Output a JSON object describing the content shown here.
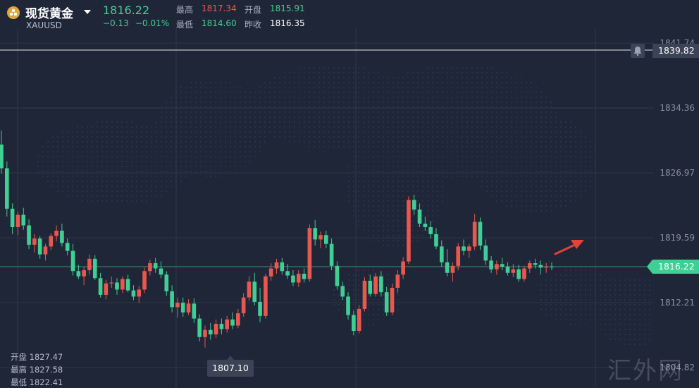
{
  "instrument": {
    "name": "现货黄金",
    "symbol": "XAUUSD",
    "last": "1816.22",
    "change": "−0.13",
    "change_pct": "−0.01%"
  },
  "quote": {
    "high_label": "最高",
    "high": "1817.34",
    "open_label": "开盘",
    "open": "1815.91",
    "low_label": "最低",
    "low": "1814.60",
    "prev_label": "昨收",
    "prev": "1816.35"
  },
  "axis": {
    "ticks": [
      "1841.74",
      "1834.36",
      "1826.97",
      "1819.59",
      "1812.21",
      "1804.82"
    ],
    "alert_price": "1839.82",
    "current_price": "1816.22"
  },
  "candle_info": {
    "open_label": "开盘",
    "open": "1827.47",
    "high_label": "最高",
    "high": "1827.58",
    "low_label": "最低",
    "low": "1822.41"
  },
  "low_marker": "1807.10",
  "watermark": "汇外网",
  "colors": {
    "up": "#e8584f",
    "down": "#3fcf94",
    "bg": "#1f2638",
    "grid": "#2e3649",
    "alert": "#e5403a"
  },
  "chart_data": {
    "type": "candlestick",
    "y_range": [
      1802.5,
      1846.0
    ],
    "candles": [
      [
        1830.2,
        1831.8,
        1826.9,
        1827.5
      ],
      [
        1827.5,
        1828.3,
        1822.0,
        1822.9
      ],
      [
        1822.9,
        1823.5,
        1820.0,
        1820.8
      ],
      [
        1820.8,
        1822.6,
        1819.9,
        1822.2
      ],
      [
        1822.2,
        1823.0,
        1820.5,
        1821.0
      ],
      [
        1821.0,
        1821.7,
        1818.3,
        1818.8
      ],
      [
        1818.8,
        1820.0,
        1817.9,
        1819.5
      ],
      [
        1819.5,
        1819.8,
        1817.2,
        1817.7
      ],
      [
        1817.7,
        1818.9,
        1817.0,
        1818.6
      ],
      [
        1818.6,
        1820.1,
        1818.2,
        1819.8
      ],
      [
        1819.8,
        1821.0,
        1819.2,
        1820.4
      ],
      [
        1820.4,
        1821.2,
        1818.6,
        1819.0
      ],
      [
        1819.0,
        1819.5,
        1817.6,
        1818.1
      ],
      [
        1818.1,
        1818.9,
        1815.3,
        1815.8
      ],
      [
        1815.8,
        1816.5,
        1814.9,
        1815.2
      ],
      [
        1815.2,
        1816.3,
        1814.2,
        1815.9
      ],
      [
        1815.9,
        1817.7,
        1815.4,
        1817.2
      ],
      [
        1817.2,
        1817.6,
        1814.8,
        1815.0
      ],
      [
        1815.0,
        1815.6,
        1812.8,
        1813.1
      ],
      [
        1813.1,
        1814.8,
        1812.6,
        1814.4
      ],
      [
        1814.4,
        1815.2,
        1813.9,
        1814.5
      ],
      [
        1814.5,
        1815.0,
        1813.1,
        1813.7
      ],
      [
        1813.7,
        1815.2,
        1813.3,
        1814.9
      ],
      [
        1814.9,
        1815.4,
        1813.4,
        1813.6
      ],
      [
        1813.6,
        1814.2,
        1812.5,
        1812.9
      ],
      [
        1812.9,
        1814.1,
        1812.2,
        1813.7
      ],
      [
        1813.7,
        1816.2,
        1813.3,
        1815.8
      ],
      [
        1815.8,
        1817.1,
        1815.3,
        1816.7
      ],
      [
        1816.7,
        1817.3,
        1815.6,
        1816.1
      ],
      [
        1816.1,
        1816.9,
        1815.0,
        1815.4
      ],
      [
        1815.4,
        1815.8,
        1813.0,
        1813.5
      ],
      [
        1813.5,
        1814.2,
        1811.1,
        1811.7
      ],
      [
        1811.7,
        1812.8,
        1810.5,
        1812.2
      ],
      [
        1812.2,
        1812.8,
        1810.6,
        1811.1
      ],
      [
        1811.1,
        1812.6,
        1810.8,
        1812.1
      ],
      [
        1812.1,
        1812.7,
        1809.9,
        1810.4
      ],
      [
        1810.4,
        1810.9,
        1807.8,
        1808.3
      ],
      [
        1808.3,
        1809.6,
        1807.1,
        1809.1
      ],
      [
        1809.1,
        1809.9,
        1808.0,
        1808.6
      ],
      [
        1808.6,
        1810.3,
        1808.2,
        1809.8
      ],
      [
        1809.8,
        1810.4,
        1808.6,
        1809.2
      ],
      [
        1809.2,
        1810.7,
        1808.8,
        1810.3
      ],
      [
        1810.3,
        1811.1,
        1809.2,
        1809.6
      ],
      [
        1809.6,
        1811.5,
        1809.3,
        1811.0
      ],
      [
        1811.0,
        1813.3,
        1810.6,
        1812.8
      ],
      [
        1812.8,
        1815.2,
        1812.4,
        1814.6
      ],
      [
        1814.6,
        1815.6,
        1811.9,
        1812.3
      ],
      [
        1812.3,
        1813.9,
        1810.0,
        1810.7
      ],
      [
        1810.7,
        1815.5,
        1810.4,
        1815.2
      ],
      [
        1815.2,
        1816.7,
        1814.7,
        1816.1
      ],
      [
        1816.1,
        1817.2,
        1815.5,
        1816.8
      ],
      [
        1816.8,
        1817.3,
        1815.4,
        1815.8
      ],
      [
        1815.8,
        1816.6,
        1814.9,
        1815.3
      ],
      [
        1815.3,
        1815.9,
        1814.1,
        1814.5
      ],
      [
        1814.5,
        1815.9,
        1814.0,
        1815.5
      ],
      [
        1815.5,
        1816.1,
        1814.5,
        1814.9
      ],
      [
        1814.9,
        1821.1,
        1814.6,
        1820.7
      ],
      [
        1820.7,
        1821.6,
        1818.7,
        1819.4
      ],
      [
        1819.4,
        1820.3,
        1818.4,
        1819.9
      ],
      [
        1819.9,
        1820.4,
        1818.4,
        1818.9
      ],
      [
        1818.9,
        1819.5,
        1815.9,
        1816.4
      ],
      [
        1816.4,
        1816.9,
        1813.7,
        1814.1
      ],
      [
        1814.1,
        1814.6,
        1812.5,
        1812.9
      ],
      [
        1812.9,
        1813.4,
        1810.3,
        1810.8
      ],
      [
        1810.8,
        1811.3,
        1808.5,
        1809.0
      ],
      [
        1809.0,
        1811.9,
        1808.7,
        1811.5
      ],
      [
        1811.5,
        1815.1,
        1811.2,
        1814.7
      ],
      [
        1814.7,
        1815.4,
        1812.9,
        1813.2
      ],
      [
        1813.2,
        1815.6,
        1812.9,
        1815.2
      ],
      [
        1815.2,
        1815.8,
        1812.9,
        1813.4
      ],
      [
        1813.4,
        1814.0,
        1810.7,
        1811.1
      ],
      [
        1811.1,
        1814.4,
        1810.8,
        1813.9
      ],
      [
        1813.9,
        1815.9,
        1813.3,
        1815.4
      ],
      [
        1815.4,
        1817.4,
        1814.9,
        1816.9
      ],
      [
        1816.9,
        1824.3,
        1816.6,
        1823.9
      ],
      [
        1823.9,
        1824.5,
        1822.2,
        1822.8
      ],
      [
        1822.8,
        1823.5,
        1820.8,
        1821.2
      ],
      [
        1821.2,
        1822.0,
        1820.4,
        1820.8
      ],
      [
        1820.8,
        1821.5,
        1819.5,
        1820.0
      ],
      [
        1820.0,
        1820.7,
        1818.3,
        1818.6
      ],
      [
        1818.6,
        1819.3,
        1816.3,
        1816.8
      ],
      [
        1816.8,
        1818.3,
        1815.2,
        1815.6
      ],
      [
        1815.6,
        1816.8,
        1814.6,
        1816.4
      ],
      [
        1816.4,
        1819.0,
        1815.9,
        1818.6
      ],
      [
        1818.6,
        1819.4,
        1817.6,
        1818.1
      ],
      [
        1818.1,
        1818.9,
        1817.3,
        1818.6
      ],
      [
        1818.6,
        1822.3,
        1818.2,
        1821.4
      ],
      [
        1821.4,
        1821.9,
        1818.2,
        1818.7
      ],
      [
        1818.7,
        1819.4,
        1816.5,
        1817.0
      ],
      [
        1817.0,
        1817.5,
        1815.6,
        1816.0
      ],
      [
        1816.0,
        1817.0,
        1815.4,
        1816.6
      ],
      [
        1816.6,
        1817.3,
        1815.9,
        1816.3
      ],
      [
        1816.3,
        1816.8,
        1815.3,
        1815.6
      ],
      [
        1815.6,
        1816.6,
        1815.1,
        1816.0
      ],
      [
        1816.0,
        1816.5,
        1814.6,
        1814.9
      ],
      [
        1814.9,
        1816.4,
        1814.6,
        1816.1
      ],
      [
        1816.1,
        1817.0,
        1815.6,
        1816.7
      ],
      [
        1816.7,
        1817.2,
        1816.1,
        1816.5
      ],
      [
        1816.5,
        1817.0,
        1815.4,
        1816.2
      ],
      [
        1816.2,
        1816.7,
        1815.6,
        1816.3
      ],
      [
        1816.3,
        1816.8,
        1815.9,
        1816.22
      ]
    ]
  }
}
